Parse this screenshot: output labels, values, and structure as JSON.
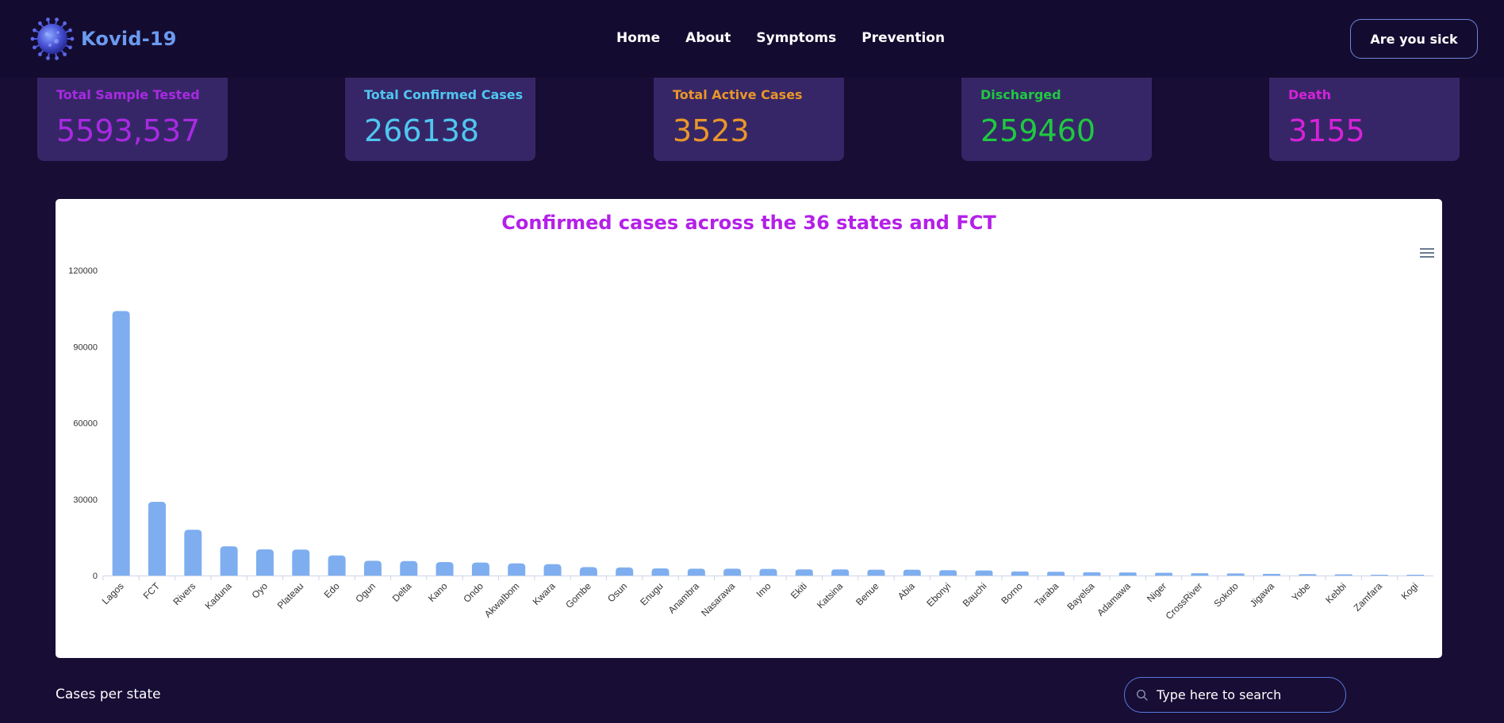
{
  "app": {
    "name": "Kovid-19"
  },
  "nav": {
    "links": [
      "Home",
      "About",
      "Symptoms",
      "Prevention"
    ],
    "cta": "Are you sick"
  },
  "stats": [
    {
      "label": "Total Sample Tested",
      "value": "5593,537",
      "color": "#a82ae2"
    },
    {
      "label": "Total Confirmed Cases",
      "value": "266138",
      "color": "#4fc6f0"
    },
    {
      "label": "Total Active Cases",
      "value": "3523",
      "color": "#e9962a"
    },
    {
      "label": "Discharged",
      "value": "259460",
      "color": "#1fc941"
    },
    {
      "label": "Death",
      "value": "3155",
      "color": "#d622d9"
    }
  ],
  "chart_data": {
    "type": "bar",
    "title": "Confirmed cases across the 36 states and FCT",
    "title_color": "#b420e8",
    "bar_color": "#7eaeef",
    "xlabel": "",
    "ylabel": "",
    "ylim": [
      0,
      120000
    ],
    "yticks": [
      0,
      30000,
      60000,
      90000,
      120000
    ],
    "categories": [
      "Lagos",
      "FCT",
      "Rivers",
      "Kaduna",
      "Oyo",
      "Plateau",
      "Edo",
      "Ogun",
      "Delta",
      "Kano",
      "Ondo",
      "AkwaIbom",
      "Kwara",
      "Gombe",
      "Osun",
      "Enugu",
      "Anambra",
      "Nasarawa",
      "Imo",
      "Ekiti",
      "Katsina",
      "Benue",
      "Abia",
      "Ebonyi",
      "Bauchi",
      "Borno",
      "Taraba",
      "Bayelsa",
      "Adamawa",
      "Niger",
      "CrossRiver",
      "Sokoto",
      "Jigawa",
      "Yobe",
      "Kebbi",
      "Zamfara",
      "Kogi"
    ],
    "values": [
      104000,
      29000,
      18000,
      11500,
      10300,
      10200,
      7900,
      5800,
      5700,
      5300,
      5100,
      4800,
      4500,
      3300,
      3200,
      2800,
      2700,
      2700,
      2600,
      2400,
      2400,
      2300,
      2300,
      2100,
      2000,
      1600,
      1500,
      1300,
      1200,
      1100,
      900,
      800,
      650,
      550,
      450,
      300,
      5
    ]
  },
  "bottom": {
    "cases_label": "Cases per state",
    "search_placeholder": "Type here to search"
  }
}
